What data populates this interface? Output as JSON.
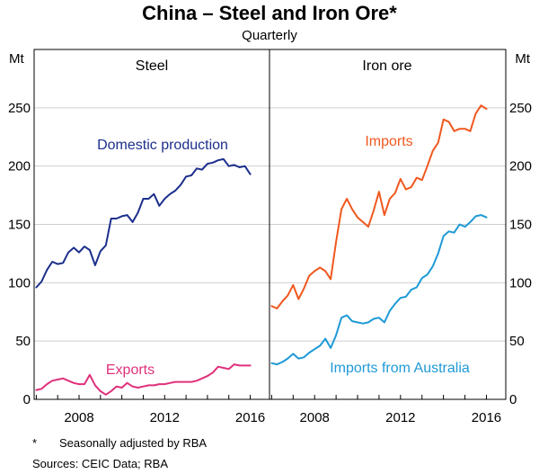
{
  "chart_data": {
    "type": "line",
    "title": "China – Steel and Iron Ore*",
    "subtitle": "Quarterly",
    "unit": "Mt",
    "ylim": [
      0,
      300
    ],
    "yticks": [
      0,
      50,
      100,
      150,
      200,
      250
    ],
    "xlim": [
      2005.9,
      2016.9
    ],
    "xticks": [
      2008,
      2012,
      2016
    ],
    "colors": {
      "domestic_production": "#1c2f8c",
      "exports": "#e0307a",
      "imports": "#f0581f",
      "imports_from_australia": "#1e9ad6",
      "frame": "#000000"
    },
    "panels": [
      {
        "title": "Steel",
        "series": [
          {
            "key": "domestic_production",
            "name": "Domestic production",
            "points": [
              [
                2006.0,
                96
              ],
              [
                2006.25,
                101
              ],
              [
                2006.5,
                111
              ],
              [
                2006.75,
                118
              ],
              [
                2007.0,
                116
              ],
              [
                2007.25,
                117
              ],
              [
                2007.5,
                126
              ],
              [
                2007.75,
                130
              ],
              [
                2008.0,
                126
              ],
              [
                2008.25,
                131
              ],
              [
                2008.5,
                128
              ],
              [
                2008.75,
                115
              ],
              [
                2009.0,
                127
              ],
              [
                2009.25,
                132
              ],
              [
                2009.5,
                155
              ],
              [
                2009.75,
                155
              ],
              [
                2010.0,
                157
              ],
              [
                2010.25,
                158
              ],
              [
                2010.5,
                152
              ],
              [
                2010.75,
                160
              ],
              [
                2011.0,
                172
              ],
              [
                2011.25,
                172
              ],
              [
                2011.5,
                176
              ],
              [
                2011.75,
                166
              ],
              [
                2012.0,
                172
              ],
              [
                2012.25,
                176
              ],
              [
                2012.5,
                179
              ],
              [
                2012.75,
                184
              ],
              [
                2013.0,
                191
              ],
              [
                2013.25,
                192
              ],
              [
                2013.5,
                198
              ],
              [
                2013.75,
                197
              ],
              [
                2014.0,
                202
              ],
              [
                2014.25,
                203
              ],
              [
                2014.5,
                205
              ],
              [
                2014.75,
                206
              ],
              [
                2015.0,
                200
              ],
              [
                2015.25,
                201
              ],
              [
                2015.5,
                199
              ],
              [
                2015.75,
                200
              ],
              [
                2016.0,
                193
              ]
            ]
          },
          {
            "key": "exports",
            "name": "Exports",
            "points": [
              [
                2006.0,
                8
              ],
              [
                2006.25,
                9
              ],
              [
                2006.5,
                13
              ],
              [
                2006.75,
                16
              ],
              [
                2007.0,
                17
              ],
              [
                2007.25,
                18
              ],
              [
                2007.5,
                16
              ],
              [
                2007.75,
                14
              ],
              [
                2008.0,
                13
              ],
              [
                2008.25,
                13
              ],
              [
                2008.5,
                21
              ],
              [
                2008.75,
                12
              ],
              [
                2009.0,
                7
              ],
              [
                2009.25,
                4
              ],
              [
                2009.5,
                7
              ],
              [
                2009.75,
                11
              ],
              [
                2010.0,
                10
              ],
              [
                2010.25,
                14
              ],
              [
                2010.5,
                11
              ],
              [
                2010.75,
                10
              ],
              [
                2011.0,
                11
              ],
              [
                2011.25,
                12
              ],
              [
                2011.5,
                12
              ],
              [
                2011.75,
                13
              ],
              [
                2012.0,
                13
              ],
              [
                2012.25,
                14
              ],
              [
                2012.5,
                15
              ],
              [
                2012.75,
                15
              ],
              [
                2013.0,
                15
              ],
              [
                2013.25,
                15
              ],
              [
                2013.5,
                16
              ],
              [
                2013.75,
                18
              ],
              [
                2014.0,
                20
              ],
              [
                2014.25,
                23
              ],
              [
                2014.5,
                28
              ],
              [
                2014.75,
                27
              ],
              [
                2015.0,
                26
              ],
              [
                2015.25,
                30
              ],
              [
                2015.5,
                29
              ],
              [
                2015.75,
                29
              ],
              [
                2016.0,
                29
              ]
            ]
          }
        ]
      },
      {
        "title": "Iron ore",
        "series": [
          {
            "key": "imports",
            "name": "Imports",
            "points": [
              [
                2006.0,
                80
              ],
              [
                2006.25,
                78
              ],
              [
                2006.5,
                84
              ],
              [
                2006.75,
                89
              ],
              [
                2007.0,
                98
              ],
              [
                2007.25,
                86
              ],
              [
                2007.5,
                95
              ],
              [
                2007.75,
                106
              ],
              [
                2008.0,
                110
              ],
              [
                2008.25,
                113
              ],
              [
                2008.5,
                110
              ],
              [
                2008.75,
                103
              ],
              [
                2009.0,
                135
              ],
              [
                2009.25,
                163
              ],
              [
                2009.5,
                172
              ],
              [
                2009.75,
                163
              ],
              [
                2010.0,
                156
              ],
              [
                2010.25,
                152
              ],
              [
                2010.5,
                148
              ],
              [
                2010.75,
                162
              ],
              [
                2011.0,
                178
              ],
              [
                2011.25,
                158
              ],
              [
                2011.5,
                172
              ],
              [
                2011.75,
                177
              ],
              [
                2012.0,
                189
              ],
              [
                2012.25,
                180
              ],
              [
                2012.5,
                182
              ],
              [
                2012.75,
                190
              ],
              [
                2013.0,
                188
              ],
              [
                2013.25,
                200
              ],
              [
                2013.5,
                213
              ],
              [
                2013.75,
                220
              ],
              [
                2014.0,
                240
              ],
              [
                2014.25,
                238
              ],
              [
                2014.5,
                230
              ],
              [
                2014.75,
                232
              ],
              [
                2015.0,
                232
              ],
              [
                2015.25,
                230
              ],
              [
                2015.5,
                245
              ],
              [
                2015.75,
                252
              ],
              [
                2016.0,
                249
              ]
            ]
          },
          {
            "key": "imports_from_australia",
            "name": "Imports from Australia",
            "points": [
              [
                2006.0,
                31
              ],
              [
                2006.25,
                30
              ],
              [
                2006.5,
                32
              ],
              [
                2006.75,
                35
              ],
              [
                2007.0,
                39
              ],
              [
                2007.25,
                35
              ],
              [
                2007.5,
                36
              ],
              [
                2007.75,
                40
              ],
              [
                2008.0,
                43
              ],
              [
                2008.25,
                46
              ],
              [
                2008.5,
                52
              ],
              [
                2008.75,
                44
              ],
              [
                2009.0,
                55
              ],
              [
                2009.25,
                70
              ],
              [
                2009.5,
                72
              ],
              [
                2009.75,
                67
              ],
              [
                2010.0,
                66
              ],
              [
                2010.25,
                65
              ],
              [
                2010.5,
                66
              ],
              [
                2010.75,
                69
              ],
              [
                2011.0,
                70
              ],
              [
                2011.25,
                66
              ],
              [
                2011.5,
                76
              ],
              [
                2011.75,
                82
              ],
              [
                2012.0,
                87
              ],
              [
                2012.25,
                88
              ],
              [
                2012.5,
                94
              ],
              [
                2012.75,
                96
              ],
              [
                2013.0,
                104
              ],
              [
                2013.25,
                107
              ],
              [
                2013.5,
                114
              ],
              [
                2013.75,
                125
              ],
              [
                2014.0,
                140
              ],
              [
                2014.25,
                144
              ],
              [
                2014.5,
                143
              ],
              [
                2014.75,
                150
              ],
              [
                2015.0,
                148
              ],
              [
                2015.25,
                152
              ],
              [
                2015.5,
                157
              ],
              [
                2015.75,
                158
              ],
              [
                2016.0,
                156
              ]
            ]
          }
        ]
      }
    ]
  },
  "footnotes": {
    "marker": "*",
    "note": "Seasonally adjusted by RBA",
    "sources": "Sources:   CEIC Data; RBA"
  }
}
